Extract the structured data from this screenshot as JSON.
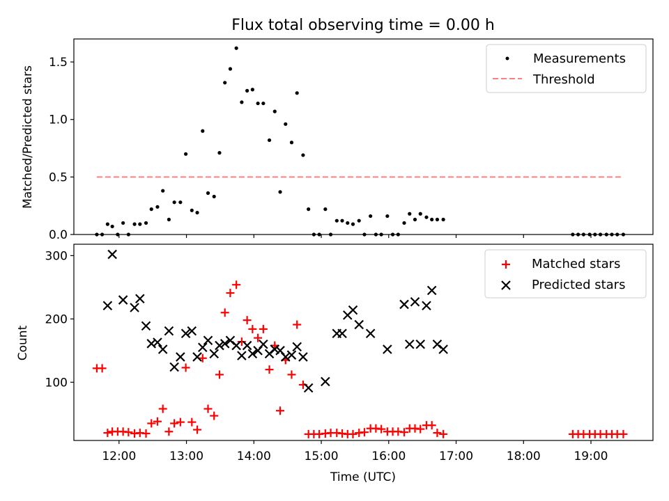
{
  "chart_data": {
    "type": "scatter",
    "title": "Flux total observing time = 0.00 h",
    "xlabel": "Time (UTC)",
    "x_ticks": [
      "12:00",
      "13:00",
      "14:00",
      "15:00",
      "16:00",
      "17:00",
      "18:00",
      "19:00"
    ],
    "x_tick_hours": [
      12,
      13,
      14,
      15,
      16,
      17,
      18,
      19
    ],
    "x_range_hours": [
      11.33,
      19.92
    ],
    "panels": [
      {
        "id": "ratio",
        "ylabel": "Matched/Predicted stars",
        "ylim": [
          0,
          1.7
        ],
        "y_ticks": [
          0.0,
          0.5,
          1.0,
          1.5
        ],
        "y_tick_labels": [
          "0.0",
          "0.5",
          "1.0",
          "1.5"
        ],
        "legend_position": "upper right",
        "series": [
          {
            "name": "Measurements",
            "marker": "dot",
            "color": "#000000",
            "points": [
              [
                11.67,
                0.0
              ],
              [
                11.75,
                0.0
              ],
              [
                11.83,
                0.09
              ],
              [
                11.9,
                0.07
              ],
              [
                11.98,
                0.0
              ],
              [
                12.06,
                0.1
              ],
              [
                12.14,
                0.0
              ],
              [
                12.23,
                0.09
              ],
              [
                12.31,
                0.09
              ],
              [
                12.4,
                0.1
              ],
              [
                12.48,
                0.22
              ],
              [
                12.57,
                0.24
              ],
              [
                12.65,
                0.38
              ],
              [
                12.74,
                0.13
              ],
              [
                12.82,
                0.28
              ],
              [
                12.91,
                0.28
              ],
              [
                12.99,
                0.7
              ],
              [
                13.08,
                0.21
              ],
              [
                13.16,
                0.19
              ],
              [
                13.24,
                0.9
              ],
              [
                13.32,
                0.36
              ],
              [
                13.41,
                0.33
              ],
              [
                13.49,
                0.71
              ],
              [
                13.57,
                1.32
              ],
              [
                13.65,
                1.44
              ],
              [
                13.74,
                1.62
              ],
              [
                13.82,
                1.15
              ],
              [
                13.9,
                1.25
              ],
              [
                13.98,
                1.26
              ],
              [
                14.06,
                1.14
              ],
              [
                14.14,
                1.14
              ],
              [
                14.23,
                0.82
              ],
              [
                14.31,
                1.07
              ],
              [
                14.39,
                0.37
              ],
              [
                14.47,
                0.96
              ],
              [
                14.56,
                0.8
              ],
              [
                14.64,
                1.23
              ],
              [
                14.73,
                0.69
              ],
              [
                14.81,
                0.22
              ],
              [
                14.89,
                0.0
              ],
              [
                14.97,
                0.0
              ],
              [
                15.06,
                0.22
              ],
              [
                15.14,
                0.0
              ],
              [
                15.23,
                0.12
              ],
              [
                15.31,
                0.12
              ],
              [
                15.39,
                0.1
              ],
              [
                15.47,
                0.09
              ],
              [
                15.56,
                0.12
              ],
              [
                15.64,
                0.0
              ],
              [
                15.73,
                0.16
              ],
              [
                15.81,
                0.0
              ],
              [
                15.89,
                0.0
              ],
              [
                15.98,
                0.16
              ],
              [
                16.06,
                0.0
              ],
              [
                16.14,
                0.0
              ],
              [
                16.23,
                0.1
              ],
              [
                16.31,
                0.18
              ],
              [
                16.39,
                0.13
              ],
              [
                16.47,
                0.18
              ],
              [
                16.56,
                0.15
              ],
              [
                16.64,
                0.13
              ],
              [
                16.72,
                0.13
              ],
              [
                16.81,
                0.13
              ],
              [
                18.73,
                0.0
              ],
              [
                18.81,
                0.0
              ],
              [
                18.89,
                0.0
              ],
              [
                18.98,
                0.0
              ],
              [
                19.06,
                0.0
              ],
              [
                19.14,
                0.0
              ],
              [
                19.23,
                0.0
              ],
              [
                19.31,
                0.0
              ],
              [
                19.39,
                0.0
              ],
              [
                19.48,
                0.0
              ]
            ]
          },
          {
            "name": "Threshold",
            "marker": "dashed-line",
            "color": "#ff7f7f",
            "points": [
              [
                11.67,
                0.5
              ],
              [
                19.48,
                0.5
              ]
            ]
          }
        ]
      },
      {
        "id": "counts",
        "ylabel": "Count",
        "ylim": [
          8,
          318
        ],
        "y_ticks": [
          100,
          200,
          300
        ],
        "y_tick_labels": [
          "100",
          "200",
          "300"
        ],
        "legend_position": "upper right",
        "series": [
          {
            "name": "Matched stars",
            "marker": "plus",
            "color": "#ff0000",
            "points": [
              [
                11.67,
                122
              ],
              [
                11.75,
                122
              ],
              [
                11.83,
                20
              ],
              [
                11.9,
                22
              ],
              [
                11.98,
                22
              ],
              [
                12.06,
                22
              ],
              [
                12.14,
                21
              ],
              [
                12.23,
                19
              ],
              [
                12.31,
                20
              ],
              [
                12.4,
                19
              ],
              [
                12.48,
                35
              ],
              [
                12.57,
                38
              ],
              [
                12.65,
                58
              ],
              [
                12.74,
                22
              ],
              [
                12.82,
                35
              ],
              [
                12.91,
                37
              ],
              [
                12.99,
                123
              ],
              [
                13.08,
                37
              ],
              [
                13.16,
                25
              ],
              [
                13.24,
                138
              ],
              [
                13.32,
                58
              ],
              [
                13.41,
                47
              ],
              [
                13.49,
                112
              ],
              [
                13.57,
                210
              ],
              [
                13.65,
                241
              ],
              [
                13.74,
                254
              ],
              [
                13.82,
                164
              ],
              [
                13.9,
                198
              ],
              [
                13.98,
                184
              ],
              [
                14.06,
                170
              ],
              [
                14.14,
                184
              ],
              [
                14.23,
                120
              ],
              [
                14.31,
                158
              ],
              [
                14.39,
                55
              ],
              [
                14.47,
                135
              ],
              [
                14.56,
                112
              ],
              [
                14.64,
                191
              ],
              [
                14.73,
                96
              ],
              [
                14.81,
                18
              ],
              [
                14.89,
                18
              ],
              [
                14.97,
                18
              ],
              [
                15.06,
                19
              ],
              [
                15.14,
                20
              ],
              [
                15.23,
                20
              ],
              [
                15.31,
                19
              ],
              [
                15.39,
                18
              ],
              [
                15.47,
                18
              ],
              [
                15.56,
                20
              ],
              [
                15.64,
                21
              ],
              [
                15.73,
                27
              ],
              [
                15.81,
                27
              ],
              [
                15.89,
                26
              ],
              [
                15.98,
                22
              ],
              [
                16.06,
                22
              ],
              [
                16.14,
                22
              ],
              [
                16.23,
                21
              ],
              [
                16.31,
                27
              ],
              [
                16.39,
                27
              ],
              [
                16.47,
                26
              ],
              [
                16.56,
                32
              ],
              [
                16.64,
                32
              ],
              [
                16.72,
                20
              ],
              [
                16.81,
                18
              ],
              [
                18.73,
                18
              ],
              [
                18.81,
                18
              ],
              [
                18.89,
                18
              ],
              [
                18.98,
                18
              ],
              [
                19.06,
                18
              ],
              [
                19.14,
                18
              ],
              [
                19.23,
                18
              ],
              [
                19.31,
                18
              ],
              [
                19.39,
                18
              ],
              [
                19.48,
                18
              ]
            ]
          },
          {
            "name": "Predicted stars",
            "marker": "cross",
            "color": "#000000",
            "points": [
              [
                11.83,
                221
              ],
              [
                11.9,
                302
              ],
              [
                12.06,
                230
              ],
              [
                12.23,
                218
              ],
              [
                12.31,
                232
              ],
              [
                12.4,
                189
              ],
              [
                12.48,
                161
              ],
              [
                12.57,
                163
              ],
              [
                12.65,
                152
              ],
              [
                12.74,
                181
              ],
              [
                12.82,
                124
              ],
              [
                12.91,
                140
              ],
              [
                12.99,
                177
              ],
              [
                13.08,
                181
              ],
              [
                13.16,
                140
              ],
              [
                13.24,
                155
              ],
              [
                13.32,
                166
              ],
              [
                13.41,
                145
              ],
              [
                13.49,
                158
              ],
              [
                13.57,
                161
              ],
              [
                13.65,
                166
              ],
              [
                13.74,
                158
              ],
              [
                13.82,
                142
              ],
              [
                13.9,
                158
              ],
              [
                13.98,
                145
              ],
              [
                14.06,
                150
              ],
              [
                14.14,
                160
              ],
              [
                14.23,
                145
              ],
              [
                14.31,
                152
              ],
              [
                14.39,
                150
              ],
              [
                14.47,
                140
              ],
              [
                14.56,
                143
              ],
              [
                14.64,
                156
              ],
              [
                14.73,
                140
              ],
              [
                14.81,
                91
              ],
              [
                15.06,
                101
              ],
              [
                15.23,
                177
              ],
              [
                15.31,
                177
              ],
              [
                15.39,
                206
              ],
              [
                15.47,
                214
              ],
              [
                15.56,
                191
              ],
              [
                15.73,
                177
              ],
              [
                15.98,
                152
              ],
              [
                16.23,
                223
              ],
              [
                16.31,
                160
              ],
              [
                16.39,
                227
              ],
              [
                16.47,
                160
              ],
              [
                16.56,
                221
              ],
              [
                16.64,
                245
              ],
              [
                16.72,
                160
              ],
              [
                16.81,
                152
              ]
            ]
          }
        ]
      }
    ]
  }
}
